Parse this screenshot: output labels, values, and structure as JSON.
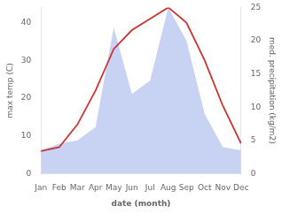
{
  "chart_data": {
    "type": "line",
    "xlabel": "date (month)",
    "ylabel": "max temp (C)",
    "y2label": "med. precipitation (kg/m2)",
    "categories": [
      "Jan",
      "Feb",
      "Mar",
      "Apr",
      "May",
      "Jun",
      "Jul",
      "Aug",
      "Sep",
      "Oct",
      "Nov",
      "Dec"
    ],
    "series": [
      {
        "type": "area",
        "axis": "y2",
        "color": "#aabbee",
        "values": [
          3.5,
          4.5,
          5,
          7,
          22,
          12,
          14,
          25,
          20,
          9,
          4,
          3.5
        ]
      },
      {
        "type": "line",
        "color": "#cc3333",
        "values": [
          6,
          7,
          13,
          22,
          33,
          38,
          41,
          44,
          40,
          30,
          18,
          8
        ]
      }
    ],
    "ylim": [
      0,
      44
    ],
    "yticks": [
      0,
      10,
      20,
      30,
      40
    ],
    "y2lim": [
      0,
      25
    ],
    "y2ticks": [
      0,
      5,
      10,
      15,
      20,
      25
    ],
    "grid": false
  }
}
